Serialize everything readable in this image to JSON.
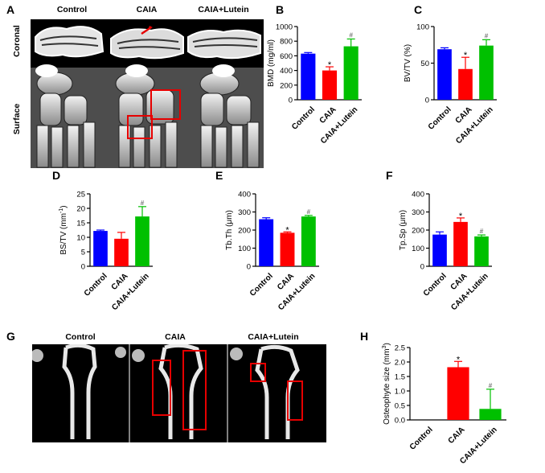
{
  "panels": {
    "A": {
      "label": "A",
      "columns": [
        "Control",
        "CAIA",
        "CAIA+Lutein"
      ],
      "rows": [
        "Coronal",
        "Surface"
      ]
    },
    "G": {
      "label": "G",
      "columns": [
        "Control",
        "CAIA",
        "CAIA+Lutein"
      ]
    }
  },
  "chart_data": [
    {
      "panel": "B",
      "type": "bar",
      "categories": [
        "Control",
        "CAIA",
        "CAIA+Lutein"
      ],
      "values": [
        630,
        400,
        730
      ],
      "errors": [
        15,
        50,
        100
      ],
      "marks": [
        "",
        "*",
        "#"
      ],
      "ylabel": "BMD (mg/ml)",
      "ylim": [
        0,
        1000
      ],
      "yticks": [
        0,
        200,
        400,
        600,
        800,
        1000
      ]
    },
    {
      "panel": "C",
      "type": "bar",
      "categories": [
        "Control",
        "CAIA",
        "CAIA+Lutein"
      ],
      "values": [
        69,
        42,
        74
      ],
      "errors": [
        2,
        16,
        8
      ],
      "marks": [
        "",
        "*",
        "#"
      ],
      "ylabel": "BV/TV (%)",
      "ylim": [
        0,
        100
      ],
      "yticks": [
        0,
        50,
        100
      ]
    },
    {
      "panel": "D",
      "type": "bar",
      "categories": [
        "Control",
        "CAIA",
        "CAIA+Lutein"
      ],
      "values": [
        12.2,
        9.5,
        17.2
      ],
      "errors": [
        0.3,
        2.2,
        3.4
      ],
      "marks": [
        "",
        "",
        "#"
      ],
      "ylabel_pre": "BS/TV (mm",
      "ylabel_sup": "-1",
      "ylabel_post": ")",
      "ylim": [
        0,
        25
      ],
      "yticks": [
        0,
        5,
        10,
        15,
        20,
        25
      ]
    },
    {
      "panel": "E",
      "type": "bar",
      "categories": [
        "Control",
        "CAIA",
        "CAIA+Lutein"
      ],
      "values": [
        260,
        185,
        275
      ],
      "errors": [
        8,
        5,
        6
      ],
      "marks": [
        "",
        "*",
        "#"
      ],
      "ylabel": "Tb.Th (μm)",
      "ylim": [
        0,
        400
      ],
      "yticks": [
        0,
        100,
        200,
        300,
        400
      ]
    },
    {
      "panel": "F",
      "type": "bar",
      "categories": [
        "Control",
        "CAIA",
        "CAIA+Lutein"
      ],
      "values": [
        175,
        245,
        165
      ],
      "errors": [
        15,
        22,
        8
      ],
      "marks": [
        "",
        "*",
        "#"
      ],
      "ylabel": "Tp.Sp (μm)",
      "ylim": [
        0,
        400
      ],
      "yticks": [
        0,
        100,
        200,
        300,
        400
      ]
    },
    {
      "panel": "H",
      "type": "bar",
      "categories": [
        "Control",
        "CAIA",
        "CAIA+Lutein"
      ],
      "values": [
        0,
        1.82,
        0.38
      ],
      "errors": [
        0,
        0.2,
        0.68
      ],
      "marks": [
        "",
        "*",
        "#"
      ],
      "ylabel_pre": "Osteophyte size (mm",
      "ylabel_sup": "3",
      "ylabel_post": ")",
      "ylim": [
        0,
        2.5
      ],
      "yticks": [
        "0.0",
        "0.5",
        "1.0",
        "1.5",
        "2.0",
        "2.5"
      ]
    }
  ],
  "colors": {
    "control": "#0000ff",
    "caia": "#ff0000",
    "lutein": "#00c000",
    "highlight": "#e60000"
  }
}
